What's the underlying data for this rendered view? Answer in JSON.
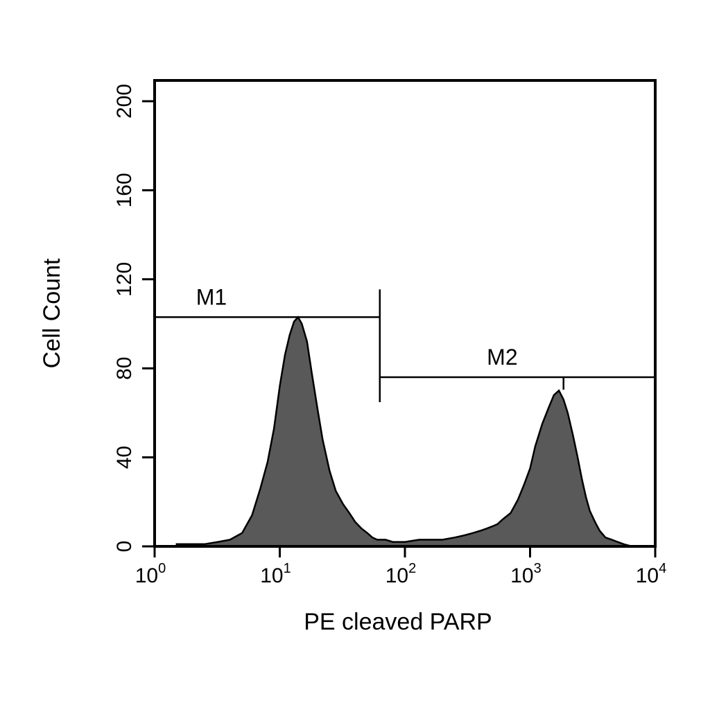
{
  "chart_data": {
    "type": "histogram",
    "xlabel": "PE cleaved PARP",
    "ylabel": "Cell Count",
    "x_scale": "log",
    "xlim": [
      1,
      10000
    ],
    "ylim": [
      0,
      210
    ],
    "x_ticks": [
      {
        "base": "10",
        "exp": "0",
        "value": 1
      },
      {
        "base": "10",
        "exp": "1",
        "value": 10
      },
      {
        "base": "10",
        "exp": "2",
        "value": 100
      },
      {
        "base": "10",
        "exp": "3",
        "value": 1000
      },
      {
        "base": "10",
        "exp": "4",
        "value": 10000
      }
    ],
    "y_ticks": [
      {
        "label": "0",
        "value": 0
      },
      {
        "label": "40",
        "value": 40
      },
      {
        "label": "80",
        "value": 80
      },
      {
        "label": "120",
        "value": 120
      },
      {
        "label": "160",
        "value": 160
      },
      {
        "label": "200",
        "value": 200
      }
    ],
    "markers": [
      {
        "label": "M1",
        "x_start": 1,
        "x_end": 63,
        "y": 103
      },
      {
        "label": "M2",
        "x_start": 63,
        "x_end": 10000,
        "y": 76
      }
    ],
    "fill_color": "#595959",
    "series": [
      {
        "x": [
          1.5,
          2.5,
          3.2,
          4.0,
          5.0,
          6.0,
          7.0,
          8.0,
          9.0,
          10.0,
          11.0,
          12.0,
          13.0,
          14.0,
          15.0,
          16.5,
          18.0,
          20.0,
          22.0,
          25.0,
          28.0,
          32.0,
          36.0,
          40.0,
          45.0,
          50.0,
          55.0,
          60.0,
          70.0,
          80.0,
          100.0,
          130.0,
          160.0,
          200.0,
          250.0,
          300.0,
          350.0,
          400.0,
          450.0,
          500.0,
          550.0,
          600.0,
          700.0,
          800.0,
          900.0,
          1000.0,
          1100.0,
          1250.0,
          1400.0,
          1550.0,
          1700.0,
          1850.0,
          2000.0,
          2200.0,
          2400.0,
          2600.0,
          2800.0,
          3000.0,
          3300.0,
          3600.0,
          4000.0,
          4500.0,
          5000.0,
          5600.0,
          6500.0
        ],
        "y": [
          1,
          1,
          2,
          3,
          6,
          14,
          26,
          38,
          53,
          72,
          86,
          95,
          101,
          103,
          100,
          92,
          78,
          62,
          48,
          34,
          25,
          19,
          15,
          11,
          8,
          6,
          4,
          3,
          3,
          2,
          2,
          3,
          3,
          3,
          4,
          5,
          6,
          7,
          8,
          9,
          10,
          12,
          15,
          21,
          28,
          35,
          45,
          55,
          62,
          68,
          70,
          66,
          60,
          50,
          40,
          30,
          22,
          16,
          11,
          7,
          4,
          3,
          2,
          1,
          0
        ]
      }
    ]
  }
}
